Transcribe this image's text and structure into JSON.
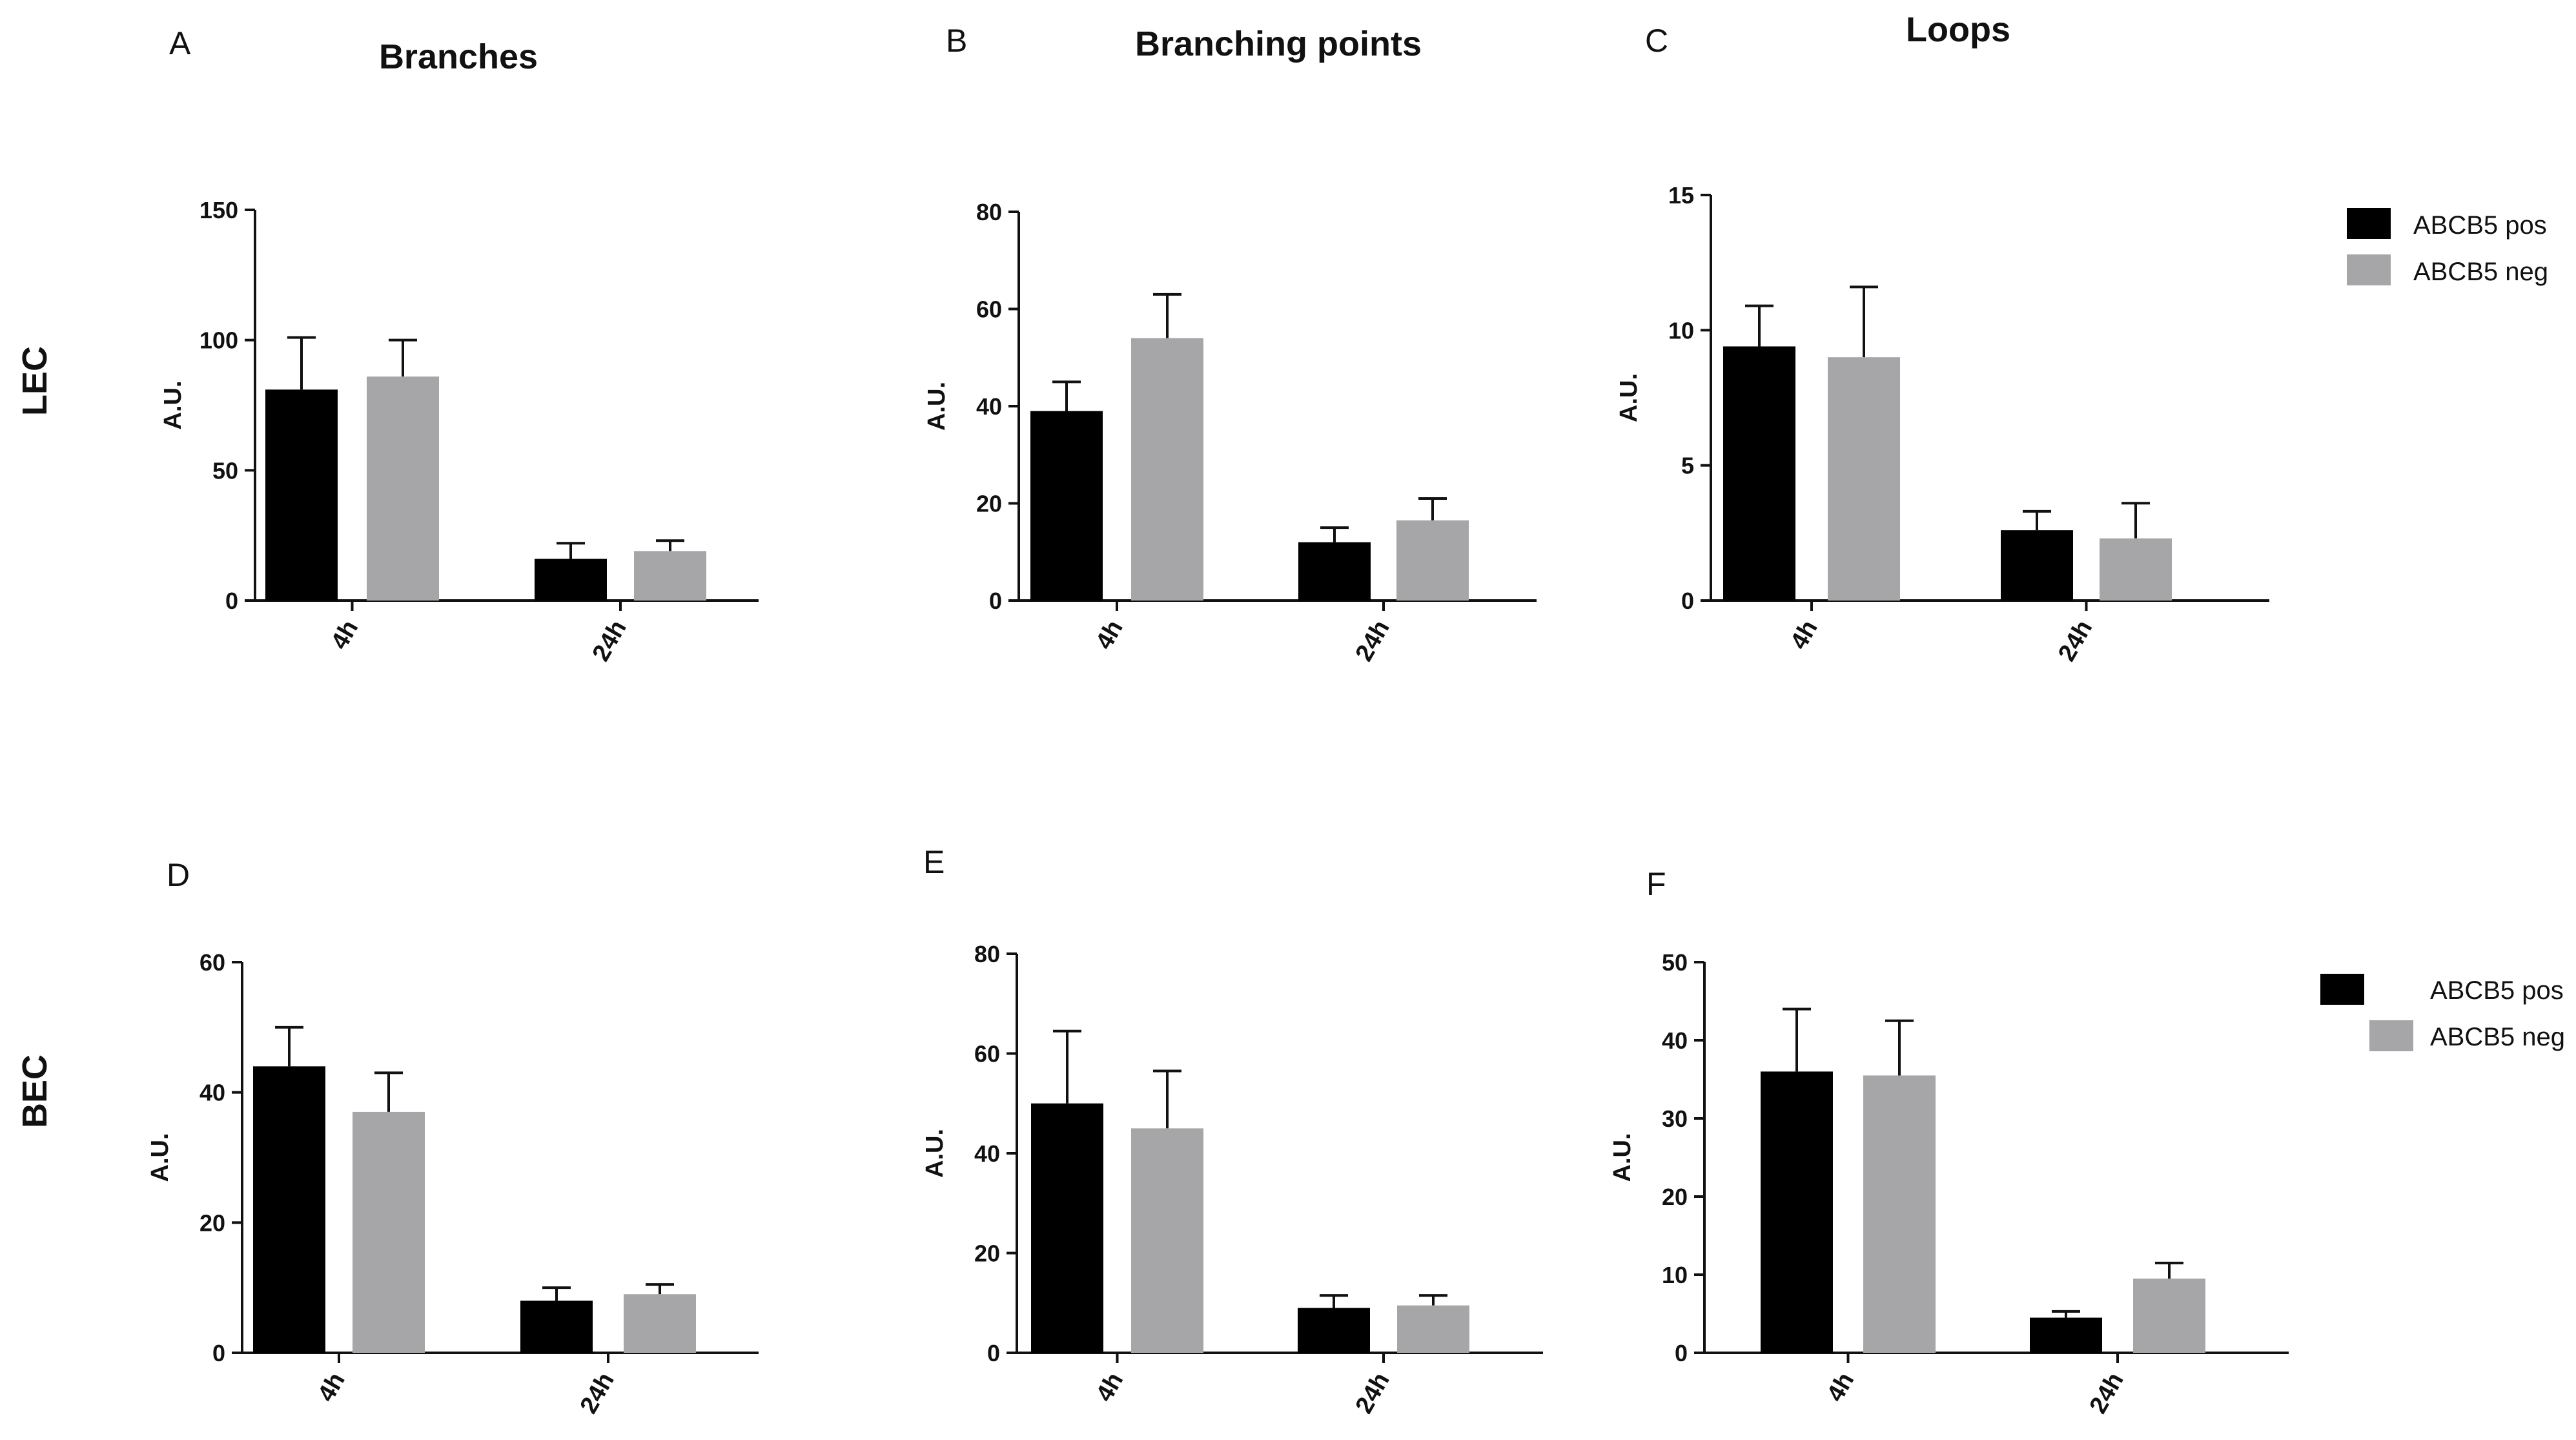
{
  "rows": [
    {
      "label": "LEC"
    },
    {
      "label": "BEC"
    }
  ],
  "legend": {
    "items": [
      {
        "name": "ABCB5 pos",
        "color": "#000000"
      },
      {
        "name": "ABCB5 neg",
        "color": "#a6a6a8"
      }
    ]
  },
  "chart_data": [
    {
      "type": "bar",
      "panel": "A",
      "title": "Branches",
      "categories": [
        "4h",
        "24h"
      ],
      "series": [
        {
          "name": "ABCB5 pos",
          "values": [
            81,
            16
          ],
          "errors": [
            20,
            6
          ]
        },
        {
          "name": "ABCB5 neg",
          "values": [
            86,
            19
          ],
          "errors": [
            14,
            4
          ]
        }
      ],
      "ylabel": "A.U.",
      "ylim": [
        0,
        150
      ],
      "yticks": [
        0,
        50,
        100,
        150
      ]
    },
    {
      "type": "bar",
      "panel": "B",
      "title": "Branching points",
      "categories": [
        "4h",
        "24h"
      ],
      "series": [
        {
          "name": "ABCB5 pos",
          "values": [
            39,
            12
          ],
          "errors": [
            6,
            3
          ]
        },
        {
          "name": "ABCB5 neg",
          "values": [
            54,
            16.5
          ],
          "errors": [
            9,
            4.5
          ]
        }
      ],
      "ylabel": "A.U.",
      "ylim": [
        0,
        80
      ],
      "yticks": [
        0,
        20,
        40,
        60,
        80
      ]
    },
    {
      "type": "bar",
      "panel": "C",
      "title": "Loops",
      "categories": [
        "4h",
        "24h"
      ],
      "series": [
        {
          "name": "ABCB5 pos",
          "values": [
            9.4,
            2.6
          ],
          "errors": [
            1.5,
            0.7
          ]
        },
        {
          "name": "ABCB5 neg",
          "values": [
            9.0,
            2.3
          ],
          "errors": [
            2.6,
            1.3
          ]
        }
      ],
      "ylabel": "A.U.",
      "ylim": [
        0,
        15
      ],
      "yticks": [
        0,
        5,
        10,
        15
      ]
    },
    {
      "type": "bar",
      "panel": "D",
      "title": "",
      "categories": [
        "4h",
        "24h"
      ],
      "series": [
        {
          "name": "ABCB5 pos",
          "values": [
            44,
            8
          ],
          "errors": [
            6,
            2
          ]
        },
        {
          "name": "ABCB5 neg",
          "values": [
            37,
            9
          ],
          "errors": [
            6,
            1.5
          ]
        }
      ],
      "ylabel": "A.U.",
      "ylim": [
        0,
        60
      ],
      "yticks": [
        0,
        20,
        40,
        60
      ]
    },
    {
      "type": "bar",
      "panel": "E",
      "title": "",
      "categories": [
        "4h",
        "24h"
      ],
      "series": [
        {
          "name": "ABCB5 pos",
          "values": [
            50,
            9
          ],
          "errors": [
            14.5,
            2.5
          ]
        },
        {
          "name": "ABCB5 neg",
          "values": [
            45,
            9.5
          ],
          "errors": [
            11.5,
            2
          ]
        }
      ],
      "ylabel": "A.U.",
      "ylim": [
        0,
        80
      ],
      "yticks": [
        0,
        20,
        40,
        60,
        80
      ]
    },
    {
      "type": "bar",
      "panel": "F",
      "title": "",
      "categories": [
        "4h",
        "24h"
      ],
      "series": [
        {
          "name": "ABCB5 pos",
          "values": [
            36,
            4.5
          ],
          "errors": [
            8,
            0.8
          ]
        },
        {
          "name": "ABCB5 neg",
          "values": [
            35.5,
            9.5
          ],
          "errors": [
            7,
            2
          ]
        }
      ],
      "ylabel": "A.U.",
      "ylim": [
        0,
        50
      ],
      "yticks": [
        0,
        10,
        20,
        30,
        40,
        50
      ]
    }
  ]
}
